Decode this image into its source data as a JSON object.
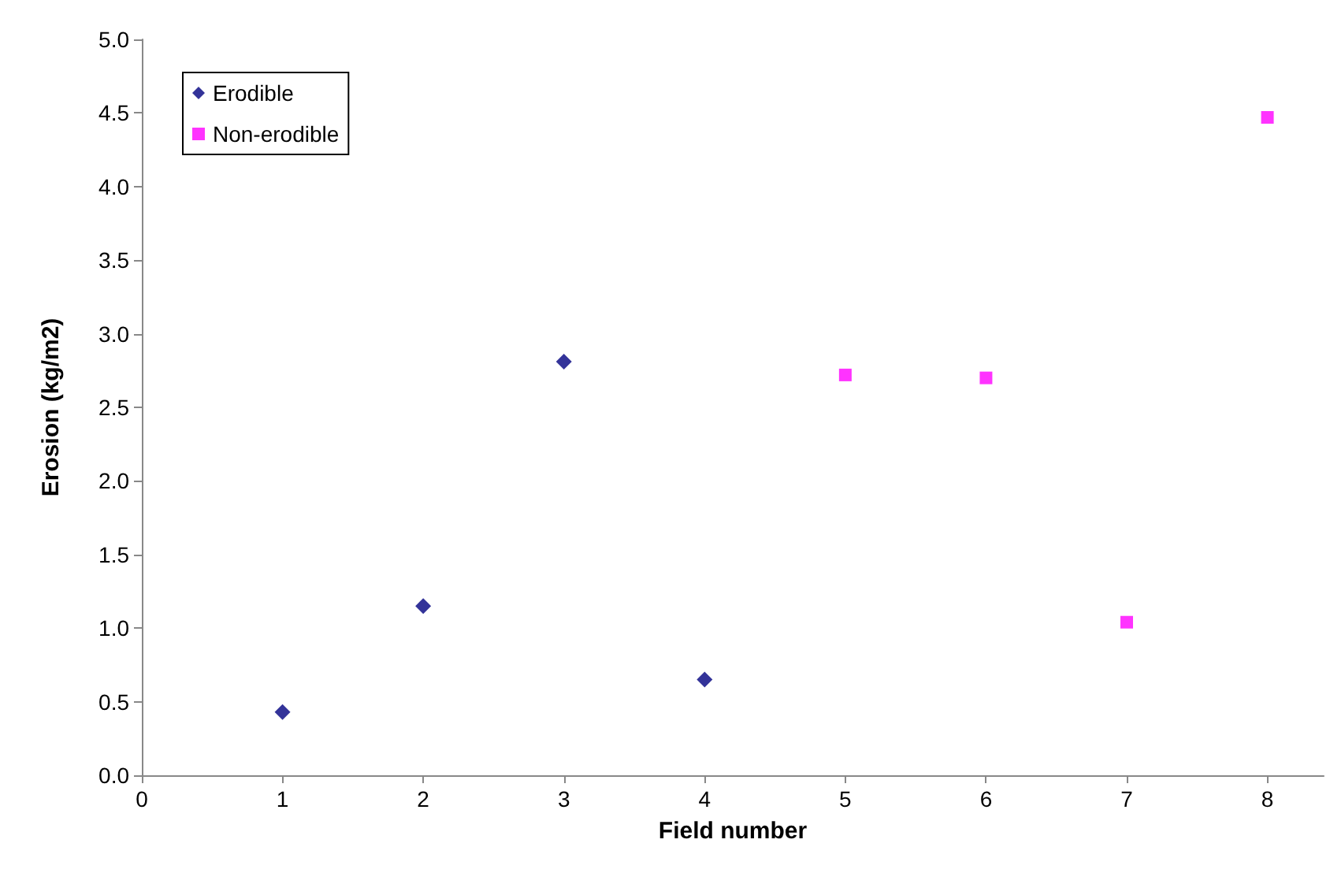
{
  "chart_data": {
    "type": "scatter",
    "xlabel": "Field number",
    "ylabel": "Erosion (kg/m2)",
    "series": [
      {
        "name": "Erodible",
        "color": "#000080",
        "marker": "diamond",
        "x": [
          1,
          2,
          3,
          4
        ],
        "values": [
          0.43,
          1.15,
          2.81,
          0.65
        ]
      },
      {
        "name": "Non-erodible",
        "color": "#ff00ff",
        "marker": "square",
        "x": [
          5,
          6,
          7,
          8
        ],
        "values": [
          2.72,
          2.7,
          1.04,
          4.47
        ]
      }
    ],
    "xlim": [
      0,
      8.4
    ],
    "xticks": [
      0,
      1,
      2,
      3,
      4,
      5,
      6,
      7,
      8
    ],
    "ylim": [
      0,
      5
    ],
    "yticks": [
      {
        "value": 0,
        "label": "0.0"
      },
      {
        "value": 0.5,
        "label": "0.5"
      },
      {
        "value": 1,
        "label": "1.0"
      },
      {
        "value": 1.5,
        "label": "1.5"
      },
      {
        "value": 2,
        "label": "2.0"
      },
      {
        "value": 2.5,
        "label": "2.5"
      },
      {
        "value": 3,
        "label": "3.0"
      },
      {
        "value": 3.5,
        "label": "3.5"
      },
      {
        "value": 4,
        "label": "4.0"
      },
      {
        "value": 4.5,
        "label": "4.5"
      },
      {
        "value": 5,
        "label": "5.0"
      }
    ],
    "grid": false,
    "legend": "top left"
  }
}
